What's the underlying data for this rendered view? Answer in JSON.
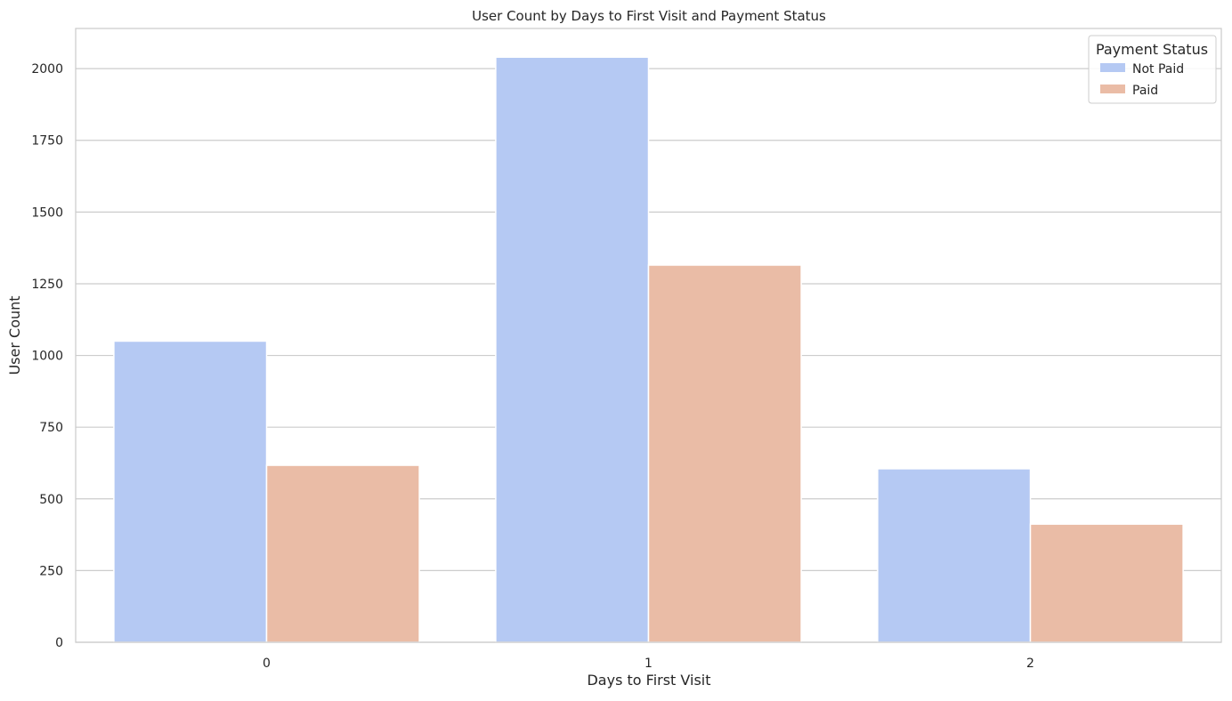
{
  "chart_data": {
    "type": "bar",
    "title": "User Count by Days to First Visit and Payment Status",
    "xlabel": "Days to First Visit",
    "ylabel": "User Count",
    "categories": [
      "0",
      "1",
      "2"
    ],
    "series": [
      {
        "name": "Not Paid",
        "color": "#b5c9f3",
        "values": [
          1050,
          2040,
          605
        ]
      },
      {
        "name": "Paid",
        "color": "#eabca6",
        "values": [
          617,
          1315,
          412
        ]
      }
    ],
    "ylim": [
      0,
      2140
    ],
    "yticks": [
      0,
      250,
      500,
      750,
      1000,
      1250,
      1500,
      1750,
      2000
    ],
    "grid": true,
    "legend": {
      "title": "Payment Status",
      "placement": "top-right"
    }
  }
}
